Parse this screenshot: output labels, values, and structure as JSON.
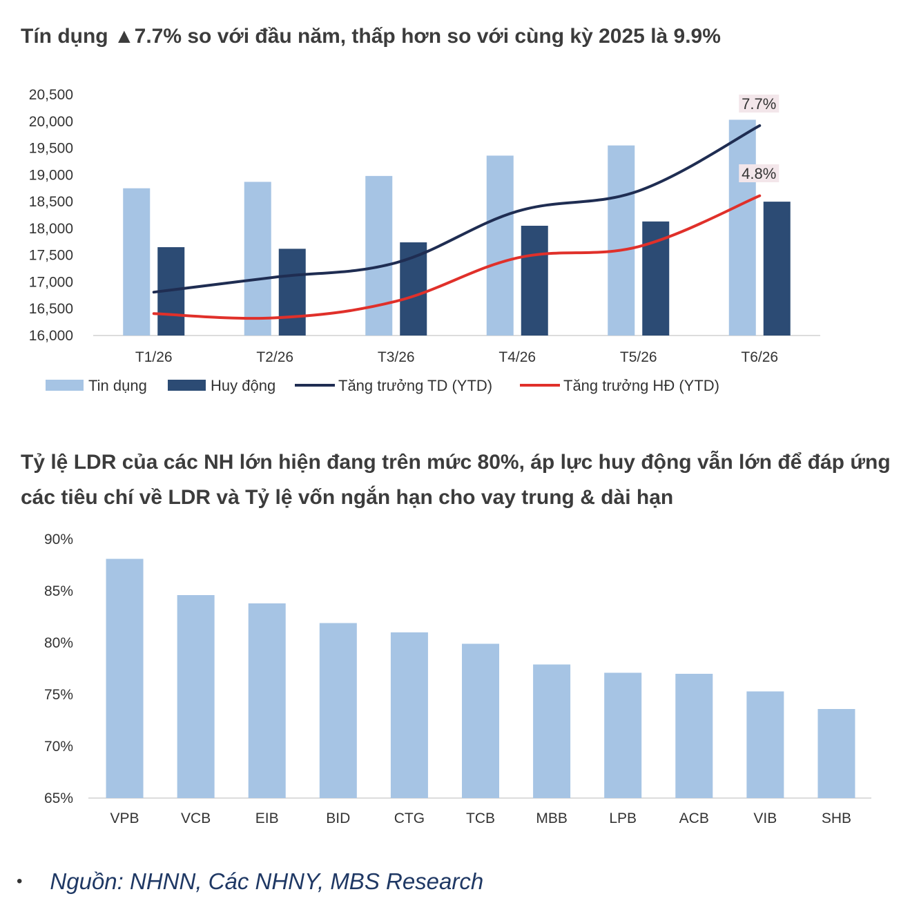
{
  "title1": "Tín dụng ▲7.7% so với đầu năm, thấp hơn so với cùng kỳ 2025 là 9.9%",
  "title2": "Tỷ lệ LDR của các NH lớn hiện đang trên mức 80%, áp lực huy động vẫn lớn để đáp ứng các tiêu chí về LDR và Tỷ lệ vốn ngắn hạn cho vay trung & dài hạn",
  "source": "Nguồn: NHNN, Các NHNY, MBS Research",
  "colors": {
    "credit": "#a6c4e4",
    "deposit": "#2c4b74",
    "td_line": "#1f2d52",
    "hd_line": "#e0302a",
    "label_bg": "#f3e6ea"
  },
  "chart_data": [
    {
      "type": "bar",
      "categories": [
        "T1/26",
        "T2/26",
        "T3/26",
        "T4/26",
        "T5/26",
        "T6/26"
      ],
      "ylim": [
        16000,
        20500
      ],
      "yticks": [
        "16,000",
        "16,500",
        "17,000",
        "17,500",
        "18,000",
        "18,500",
        "19,000",
        "19,500",
        "20,000",
        "20,500"
      ],
      "series": [
        {
          "name": "Tin dụng",
          "kind": "bar",
          "values": [
            18750,
            18870,
            18980,
            19360,
            19550,
            20030
          ]
        },
        {
          "name": "Huy động",
          "kind": "bar",
          "values": [
            17650,
            17620,
            17740,
            18050,
            18130,
            18500
          ]
        },
        {
          "name": "Tăng trưởng TD (YTD)",
          "kind": "line",
          "values": [
            16810,
            17090,
            17360,
            18320,
            18700,
            19920
          ]
        },
        {
          "name": "Tăng trưởng HĐ (YTD)",
          "kind": "line",
          "values": [
            16410,
            16330,
            16640,
            17450,
            17660,
            18610
          ]
        }
      ],
      "annotations": [
        "7.7%",
        "4.8%"
      ]
    },
    {
      "type": "bar",
      "categories": [
        "VPB",
        "VCB",
        "EIB",
        "BID",
        "CTG",
        "TCB",
        "MBB",
        "LPB",
        "ACB",
        "VIB",
        "SHB"
      ],
      "values": [
        88.1,
        84.6,
        83.8,
        81.9,
        81.0,
        79.9,
        77.9,
        77.1,
        77.0,
        75.3,
        73.6
      ],
      "ylim": [
        65,
        90
      ],
      "yticks": [
        "65%",
        "70%",
        "75%",
        "80%",
        "85%",
        "90%"
      ]
    }
  ]
}
